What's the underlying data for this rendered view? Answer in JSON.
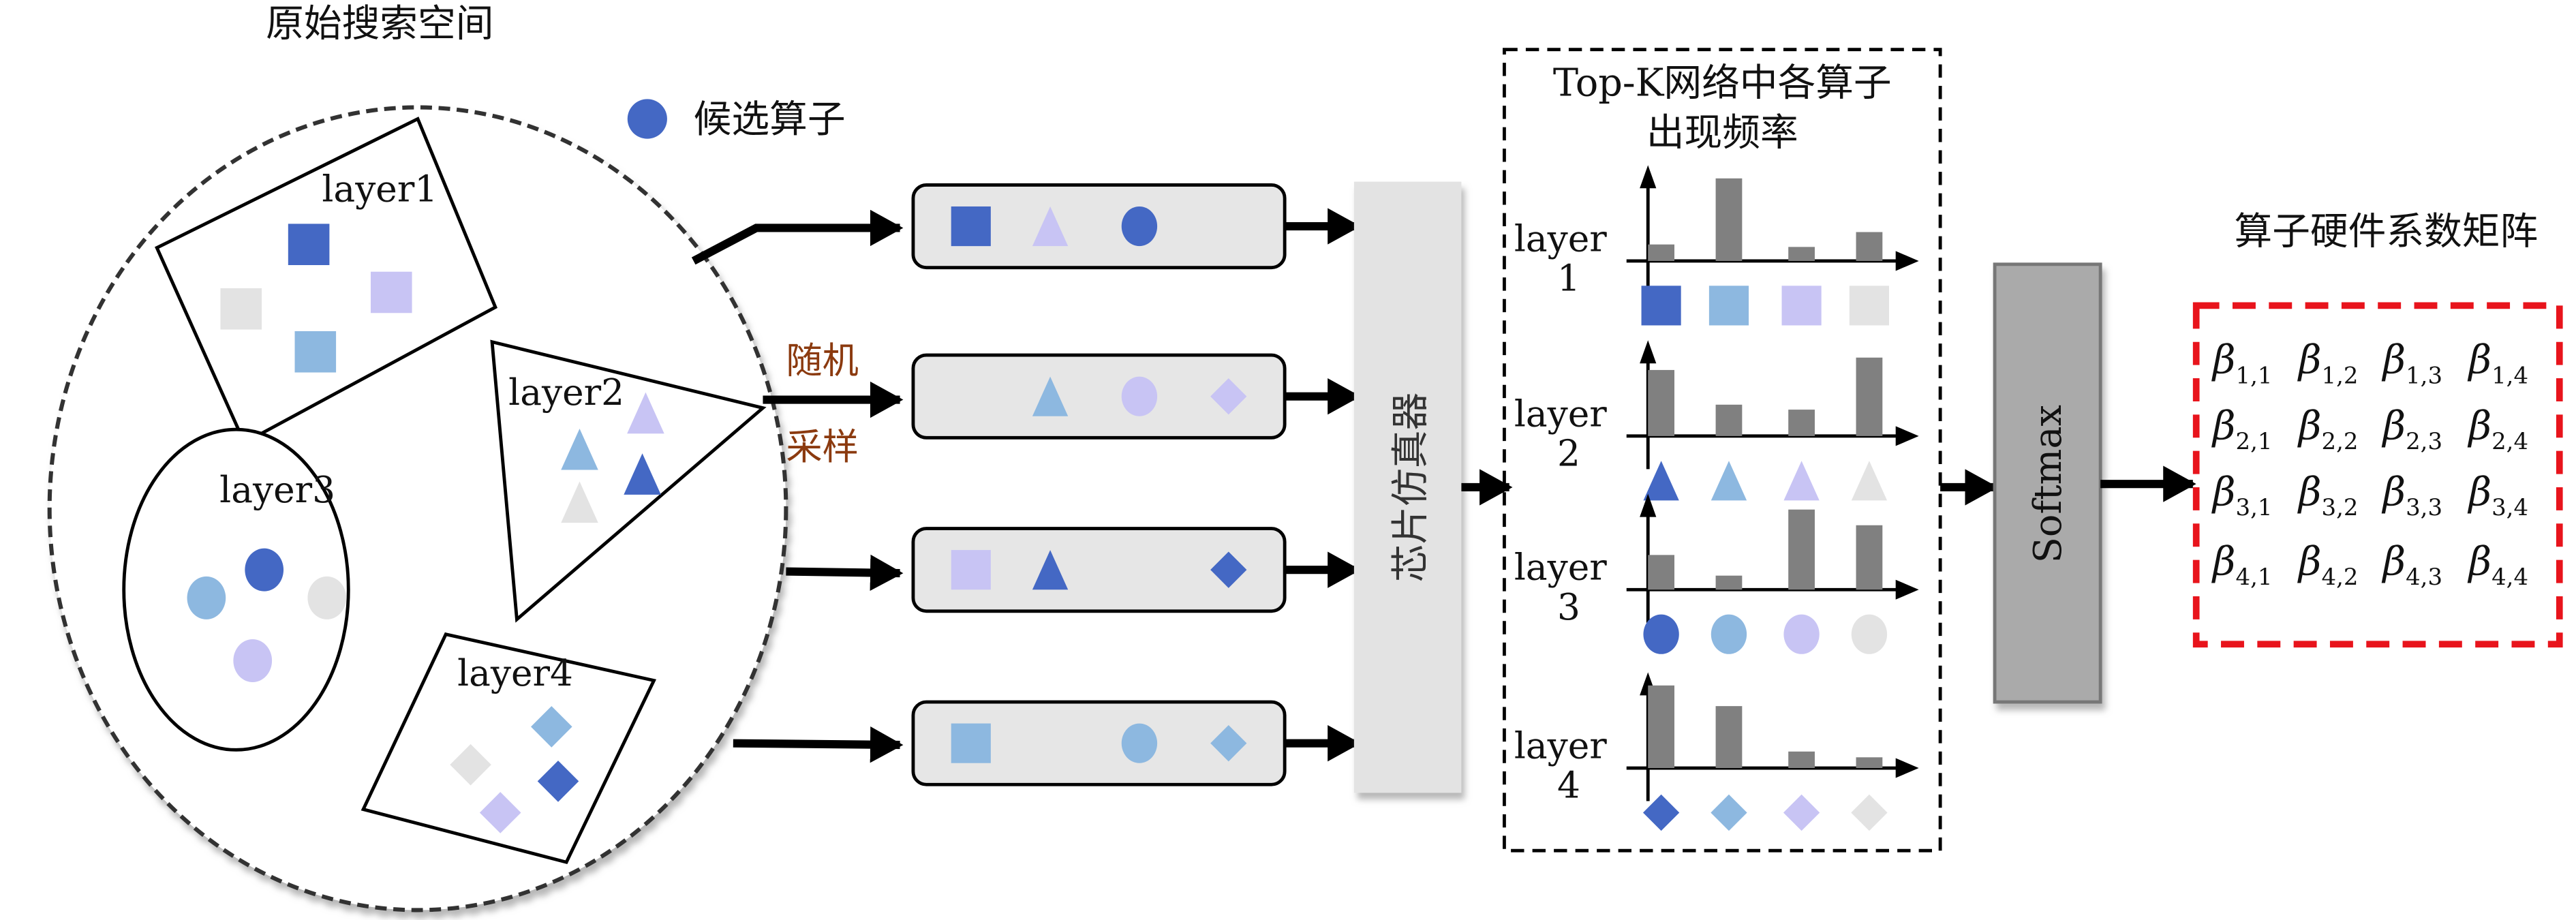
{
  "title": "原始搜索空间",
  "legend": {
    "label": "候选算子",
    "icon": "candidate-operator-dot",
    "color": "#4468c4"
  },
  "colors": {
    "dark": "#4468c4",
    "light": "#8db8e0",
    "lavender": "#c8c4f4",
    "gray": "#e3e3e3",
    "bar": "#808080",
    "sampling_text": "#8b3a0f",
    "matrix_border": "#e8141c"
  },
  "layers": [
    {
      "label": "layer1",
      "shape": "square",
      "ops": [
        "dark",
        "lavender",
        "gray",
        "light"
      ]
    },
    {
      "label": "layer2",
      "shape": "triangle",
      "ops": [
        "lavender",
        "light",
        "dark",
        "gray"
      ]
    },
    {
      "label": "layer3",
      "shape": "circle",
      "ops": [
        "dark",
        "light",
        "gray",
        "lavender"
      ]
    },
    {
      "label": "layer4",
      "shape": "diamond",
      "ops": [
        "light",
        "gray",
        "dark",
        "lavender"
      ]
    }
  ],
  "sampling_label": {
    "line1": "随机",
    "line2": "采样"
  },
  "samples": [
    [
      {
        "shape": "square",
        "color": "dark"
      },
      {
        "shape": "triangle",
        "color": "lavender"
      },
      {
        "shape": "circle",
        "color": "dark"
      },
      null
    ],
    [
      null,
      {
        "shape": "triangle",
        "color": "light"
      },
      {
        "shape": "circle",
        "color": "lavender"
      },
      {
        "shape": "diamond",
        "color": "lavender"
      }
    ],
    [
      {
        "shape": "square",
        "color": "lavender"
      },
      {
        "shape": "triangle",
        "color": "dark"
      },
      null,
      {
        "shape": "diamond",
        "color": "dark"
      }
    ],
    [
      {
        "shape": "square",
        "color": "light"
      },
      null,
      {
        "shape": "circle",
        "color": "light"
      },
      {
        "shape": "diamond",
        "color": "light"
      }
    ]
  ],
  "simulator_label": "芯片仿真器",
  "topk": {
    "title_line1": "Top-K网络中各算子",
    "title_line2": "出现频率",
    "charts": [
      {
        "label": "layer",
        "index": "1",
        "shape": "square",
        "colors": [
          "dark",
          "light",
          "lavender",
          "gray"
        ],
        "values": [
          0.2,
          1.0,
          0.17,
          0.35
        ]
      },
      {
        "label": "layer",
        "index": "2",
        "shape": "triangle",
        "colors": [
          "dark",
          "light",
          "lavender",
          "gray"
        ],
        "values": [
          0.8,
          0.38,
          0.32,
          0.95
        ]
      },
      {
        "label": "layer",
        "index": "3",
        "shape": "circle",
        "colors": [
          "dark",
          "light",
          "lavender",
          "gray"
        ],
        "values": [
          0.42,
          0.17,
          0.97,
          0.78
        ]
      },
      {
        "label": "layer",
        "index": "4",
        "shape": "diamond",
        "colors": [
          "dark",
          "light",
          "lavender",
          "gray"
        ],
        "values": [
          1.0,
          0.75,
          0.2,
          0.13
        ]
      }
    ]
  },
  "softmax_label": "Softmax",
  "matrix": {
    "title": "算子硬件系数矩阵",
    "symbol": "β",
    "entries": [
      [
        "1,1",
        "1,2",
        "1,3",
        "1,4"
      ],
      [
        "2,1",
        "2,2",
        "2,3",
        "2,4"
      ],
      [
        "3,1",
        "3,2",
        "3,3",
        "3,4"
      ],
      [
        "4,1",
        "4,2",
        "4,3",
        "4,4"
      ]
    ]
  }
}
